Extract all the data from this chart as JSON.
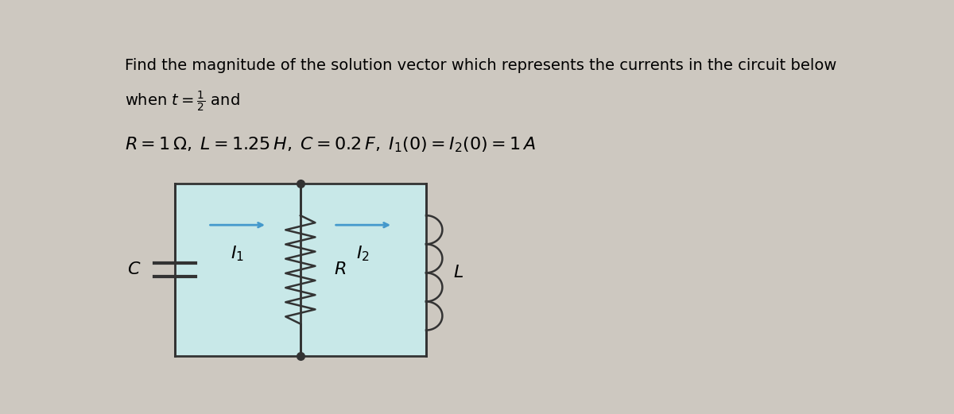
{
  "background_color": "#cdc8c0",
  "circuit_bg": "#c8e8e8",
  "text_color": "#000000",
  "arrow_color": "#4499cc",
  "line_color": "#333333",
  "title_line1": "Find the magnitude of the solution vector which represents the currents in the circuit below",
  "fig_width": 12.0,
  "fig_height": 5.21,
  "font_size_title": 14,
  "font_size_params": 16,
  "font_size_circuit": 14,
  "bx0": 0.085,
  "bx1": 0.435,
  "by0": 0.05,
  "by1": 0.92,
  "bxm": 0.26
}
